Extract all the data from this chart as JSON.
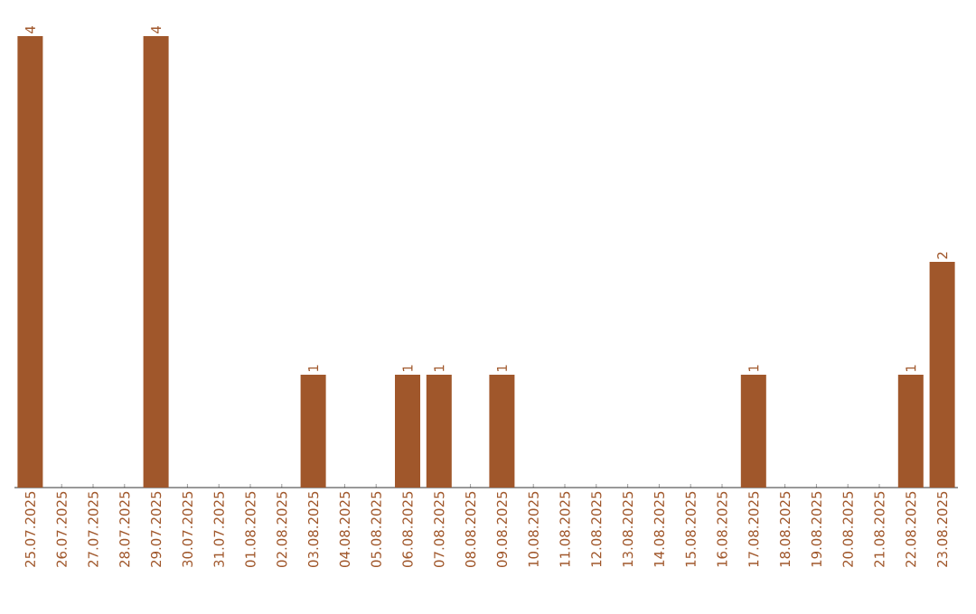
{
  "chart_data": {
    "type": "bar",
    "categories": [
      "25.07.2025",
      "26.07.2025",
      "27.07.2025",
      "28.07.2025",
      "29.07.2025",
      "30.07.2025",
      "31.07.2025",
      "01.08.2025",
      "02.08.2025",
      "03.08.2025",
      "04.08.2025",
      "05.08.2025",
      "06.08.2025",
      "07.08.2025",
      "08.08.2025",
      "09.08.2025",
      "10.08.2025",
      "11.08.2025",
      "12.08.2025",
      "13.08.2025",
      "14.08.2025",
      "15.08.2025",
      "16.08.2025",
      "17.08.2025",
      "18.08.2025",
      "19.08.2025",
      "20.08.2025",
      "21.08.2025",
      "22.08.2025",
      "23.08.2025"
    ],
    "values": [
      4,
      0,
      0,
      0,
      4,
      0,
      0,
      0,
      0,
      1,
      0,
      0,
      1,
      1,
      0,
      1,
      0,
      0,
      0,
      0,
      0,
      0,
      0,
      1,
      0,
      0,
      0,
      0,
      1,
      2
    ],
    "value_labels": [
      "4",
      null,
      null,
      null,
      "4",
      null,
      null,
      null,
      null,
      "1",
      null,
      null,
      "1",
      "1",
      null,
      "1",
      null,
      null,
      null,
      null,
      null,
      null,
      null,
      "1",
      null,
      null,
      null,
      null,
      "1",
      "2"
    ],
    "color": "#a0572b"
  }
}
